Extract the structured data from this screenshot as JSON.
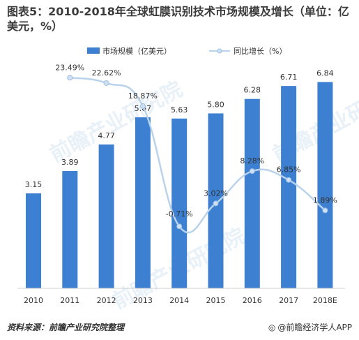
{
  "title": "图表5：2010-2018年全球虹膜识别技术市场规模及增长（单位：亿美元，%）",
  "colors": {
    "bar": "#3d7fd1",
    "line": "#b9d3ec",
    "line_marker": "#cfe0f2",
    "text": "#333333"
  },
  "chart_data": {
    "type": "bar+line",
    "categories": [
      "2010",
      "2011",
      "2012",
      "2013",
      "2014",
      "2015",
      "2016",
      "2017",
      "2018E"
    ],
    "series": [
      {
        "name": "市场规模（亿美元）",
        "type": "bar",
        "values": [
          3.15,
          3.89,
          4.77,
          5.67,
          5.63,
          5.8,
          6.28,
          6.71,
          6.84
        ],
        "labels": [
          "3.15",
          "3.89",
          "4.77",
          "5.67",
          "5.63",
          "5.80",
          "6.28",
          "6.71",
          "6.84"
        ]
      },
      {
        "name": "同比增长（%）",
        "type": "line",
        "values": [
          null,
          23.49,
          22.62,
          18.87,
          -0.71,
          3.02,
          8.28,
          6.85,
          1.89
        ],
        "labels": [
          "",
          "23.49%",
          "22.62%",
          "18.87%",
          "-0.71%",
          "3.02%",
          "8.28%",
          "6.85%",
          "1.89%"
        ]
      }
    ],
    "legend_position": "top-center",
    "grid": false
  },
  "watermark": "前瞻产业研究院",
  "footer": {
    "source": "资料来源：前瞻产业研究院整理",
    "brand": "@前瞻经济学人APP"
  }
}
